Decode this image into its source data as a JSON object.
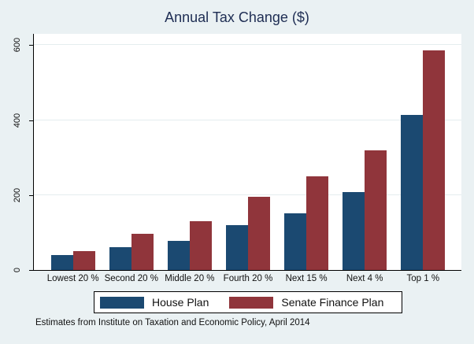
{
  "title": "Annual Tax Change ($)",
  "caption": "Estimates from Institute on Taxation and Economic Policy, April 2014",
  "colors": {
    "house_plan": "#1b4971",
    "senate_plan": "#90353b",
    "background": "#eaf1f3",
    "plot_background": "#ffffff",
    "gridline": "#e4edef",
    "title_text": "#1e2d53",
    "axis_text": "#111111"
  },
  "legend": {
    "items": [
      {
        "label": "House Plan",
        "color": "#1b4971"
      },
      {
        "label": "Senate Finance Plan",
        "color": "#90353b"
      }
    ],
    "position": "bottom"
  },
  "chart_data": {
    "type": "bar",
    "title": "Annual Tax Change ($)",
    "categories": [
      "Lowest 20 %",
      "Second 20 %",
      "Middle 20 %",
      "Fourth 20 %",
      "Next 15 %",
      "Next 4 %",
      "Top 1 %"
    ],
    "series": [
      {
        "name": "House Plan",
        "color": "#1b4971",
        "values": [
          40,
          60,
          77,
          119,
          152,
          207,
          414
        ]
      },
      {
        "name": "Senate Finance Plan",
        "color": "#90353b",
        "values": [
          50,
          96,
          131,
          196,
          249,
          320,
          586
        ]
      }
    ],
    "xlabel": "",
    "ylabel": "",
    "ylim": [
      0,
      630
    ],
    "yticks": [
      0,
      200,
      400,
      600
    ],
    "grid": true,
    "legend_position": "bottom",
    "caption": "Estimates from Institute on Taxation and Economic Policy, April 2014"
  }
}
